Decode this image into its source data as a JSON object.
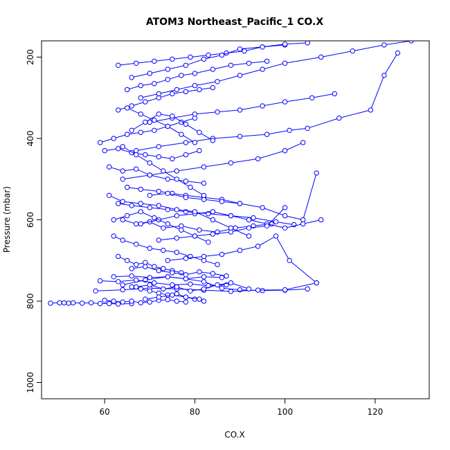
{
  "chart_data": {
    "type": "line",
    "title": "ATOM3 Northeast_Pacific_1 CO.X",
    "xlabel": "CO.X",
    "ylabel": "Pressure (mbar)",
    "xlim": [
      46,
      132
    ],
    "ylim": [
      1040,
      160
    ],
    "y_reversed": true,
    "x_ticks": [
      60,
      80,
      100,
      120
    ],
    "y_ticks": [
      200,
      400,
      600,
      800,
      1000
    ],
    "color": "#0000ff",
    "marker": "open-circle",
    "series": [
      {
        "x": [
          48,
          50,
          51,
          52,
          53,
          55,
          57,
          59,
          61,
          63,
          66
        ],
        "y": [
          805,
          804,
          804,
          805,
          804,
          805,
          804,
          806,
          806,
          807,
          806
        ]
      },
      {
        "x": [
          64,
          69,
          74,
          78,
          82,
          86,
          90,
          95,
          100,
          105
        ],
        "y": [
          760,
          748,
          740,
          745,
          752,
          768,
          772,
          774,
          773,
          770
        ]
      },
      {
        "x": [
          58,
          64,
          70,
          76,
          82,
          88,
          94,
          100,
          107
        ],
        "y": [
          775,
          772,
          768,
          770,
          773,
          776,
          773,
          772,
          755
        ]
      },
      {
        "x": [
          62,
          66,
          70,
          74,
          78,
          82,
          86
        ],
        "y": [
          740,
          738,
          742,
          740,
          745,
          740,
          742
        ]
      },
      {
        "x": [
          59,
          63,
          67,
          71,
          75,
          79,
          83,
          87
        ],
        "y": [
          750,
          752,
          748,
          755,
          760,
          758,
          762,
          760
        ]
      },
      {
        "x": [
          66,
          68,
          70,
          72,
          74,
          76,
          78,
          80,
          82
        ],
        "y": [
          765,
          770,
          775,
          780,
          785,
          782,
          790,
          795,
          800
        ]
      },
      {
        "x": [
          60,
          62,
          64,
          66,
          68,
          70,
          72,
          74,
          76,
          78
        ],
        "y": [
          798,
          800,
          802,
          800,
          804,
          802,
          798,
          796,
          800,
          802
        ]
      },
      {
        "x": [
          63,
          65,
          67,
          69,
          71,
          73,
          75,
          77
        ],
        "y": [
          690,
          700,
          710,
          705,
          715,
          720,
          725,
          730
        ]
      },
      {
        "x": [
          62,
          64,
          67,
          70,
          73,
          76,
          79,
          82,
          85
        ],
        "y": [
          640,
          650,
          660,
          670,
          675,
          680,
          690,
          700,
          710
        ]
      },
      {
        "x": [
          64,
          67,
          70,
          73,
          77,
          81,
          85,
          89,
          93,
          97
        ],
        "y": [
          600,
          610,
          605,
          620,
          615,
          625,
          630,
          620,
          615,
          610
        ]
      },
      {
        "x": [
          63,
          66,
          70,
          74,
          78,
          83,
          88,
          93,
          98,
          102
        ],
        "y": [
          560,
          565,
          570,
          575,
          580,
          585,
          590,
          595,
          605,
          612
        ]
      },
      {
        "x": [
          65,
          68,
          72,
          75,
          78,
          82,
          86,
          90
        ],
        "y": [
          520,
          525,
          530,
          535,
          540,
          545,
          550,
          560
        ]
      },
      {
        "x": [
          61,
          64,
          67,
          70,
          74,
          78,
          82
        ],
        "y": [
          470,
          480,
          475,
          490,
          500,
          505,
          510
        ]
      },
      {
        "x": [
          60,
          63,
          66,
          69,
          72,
          75,
          78,
          81
        ],
        "y": [
          430,
          425,
          435,
          440,
          445,
          450,
          440,
          430
        ]
      },
      {
        "x": [
          59,
          62,
          65,
          68,
          71,
          74,
          77,
          80
        ],
        "y": [
          410,
          400,
          390,
          385,
          380,
          370,
          360,
          350
        ]
      },
      {
        "x": [
          63,
          66,
          69,
          72,
          75,
          78,
          81,
          84
        ],
        "y": [
          330,
          320,
          310,
          300,
          290,
          285,
          280,
          275
        ]
      },
      {
        "x": [
          65,
          68,
          71,
          74,
          77,
          80,
          84,
          88,
          92,
          96
        ],
        "y": [
          280,
          270,
          265,
          255,
          245,
          240,
          230,
          220,
          215,
          210
        ]
      },
      {
        "x": [
          63,
          67,
          71,
          75,
          79,
          83,
          87,
          91,
          95,
          100
        ],
        "y": [
          220,
          215,
          210,
          205,
          200,
          195,
          190,
          185,
          175,
          170
        ]
      },
      {
        "x": [
          66,
          70,
          74,
          78,
          82,
          86,
          90,
          95,
          100,
          105
        ],
        "y": [
          250,
          240,
          230,
          220,
          205,
          195,
          180,
          175,
          168,
          165
        ]
      },
      {
        "x": [
          68,
          72,
          76,
          80,
          85,
          90,
          95,
          100,
          108,
          115,
          122,
          128
        ],
        "y": [
          300,
          290,
          280,
          270,
          260,
          245,
          230,
          215,
          200,
          185,
          170,
          160
        ]
      },
      {
        "x": [
          70,
          75,
          80,
          85,
          90,
          95,
          100,
          106,
          111
        ],
        "y": [
          360,
          350,
          340,
          335,
          330,
          320,
          310,
          300,
          290
        ]
      },
      {
        "x": [
          67,
          72,
          78,
          84,
          90,
          96,
          101,
          105,
          112,
          119,
          122,
          125
        ],
        "y": [
          430,
          420,
          410,
          400,
          395,
          390,
          380,
          375,
          350,
          330,
          245,
          190
        ]
      },
      {
        "x": [
          64,
          70,
          76,
          82,
          88,
          94,
          100,
          104
        ],
        "y": [
          500,
          490,
          480,
          470,
          460,
          450,
          430,
          410
        ]
      },
      {
        "x": [
          70,
          74,
          78,
          82,
          86,
          90,
          95,
          100,
          104,
          107
        ],
        "y": [
          540,
          535,
          545,
          550,
          555,
          560,
          570,
          590,
          600,
          485
        ]
      },
      {
        "x": [
          68,
          72,
          76,
          80,
          84,
          88,
          92,
          96,
          100,
          104,
          108
        ],
        "y": [
          610,
          600,
          590,
          585,
          580,
          590,
          600,
          610,
          620,
          610,
          600
        ]
      },
      {
        "x": [
          72,
          76,
          80,
          84,
          88,
          92,
          96,
          100
        ],
        "y": [
          650,
          645,
          640,
          635,
          630,
          620,
          615,
          570
        ]
      },
      {
        "x": [
          74,
          78,
          82,
          86,
          90,
          94,
          98,
          101,
          107
        ],
        "y": [
          700,
          695,
          690,
          685,
          675,
          665,
          640,
          700,
          755
        ]
      },
      {
        "x": [
          66,
          69,
          72,
          75,
          78,
          81,
          84,
          87
        ],
        "y": [
          720,
          715,
          725,
          730,
          735,
          728,
          732,
          738
        ]
      },
      {
        "x": [
          67,
          70,
          73,
          76,
          79,
          82,
          85,
          88,
          92
        ],
        "y": [
          765,
          760,
          770,
          765,
          775,
          770,
          760,
          755,
          770
        ]
      },
      {
        "x": [
          69,
          72,
          75,
          78,
          81
        ],
        "y": [
          795,
          790,
          785,
          790,
          795
        ]
      },
      {
        "x": [
          61,
          64,
          68,
          72,
          76,
          80,
          84,
          88,
          92
        ],
        "y": [
          540,
          555,
          560,
          565,
          575,
          580,
          600,
          620,
          640
        ]
      },
      {
        "x": [
          62,
          65,
          68,
          71,
          74,
          77,
          80,
          83
        ],
        "y": [
          600,
          590,
          580,
          595,
          610,
          625,
          640,
          655
        ]
      },
      {
        "x": [
          64,
          67,
          70,
          73,
          76,
          79,
          82
        ],
        "y": [
          420,
          440,
          460,
          480,
          500,
          520,
          540
        ]
      },
      {
        "x": [
          66,
          69,
          72,
          75,
          78,
          81,
          84
        ],
        "y": [
          380,
          360,
          340,
          345,
          365,
          385,
          405
        ]
      },
      {
        "x": [
          65,
          68,
          71,
          74,
          77,
          80
        ],
        "y": [
          325,
          340,
          355,
          370,
          390,
          410
        ]
      }
    ]
  }
}
